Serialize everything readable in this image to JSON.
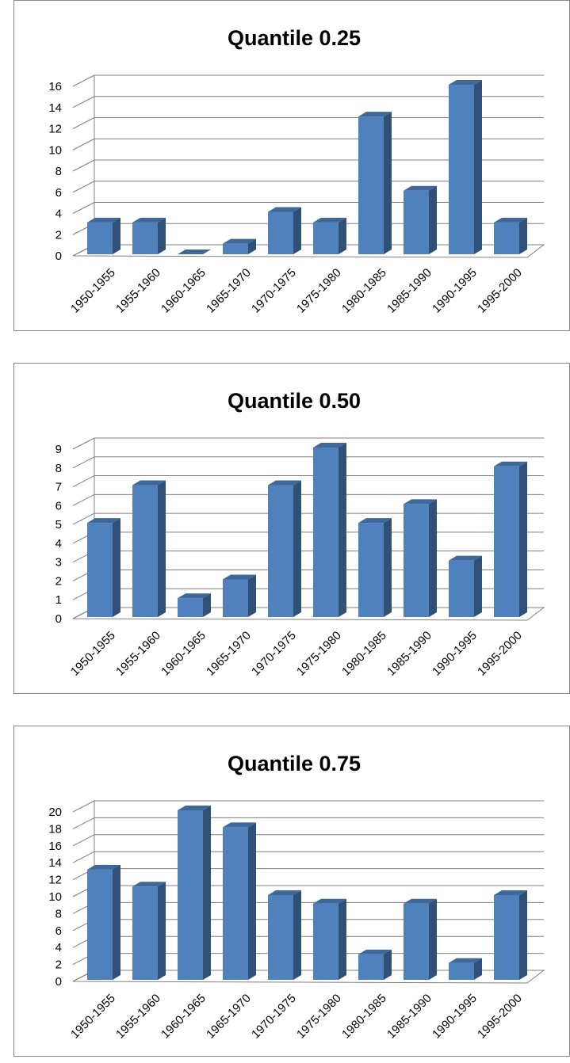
{
  "chart_data": [
    {
      "type": "bar",
      "title": "Quantile 0.25",
      "xlabel": "",
      "ylabel": "",
      "categories": [
        "1950-1955",
        "1955-1960",
        "1960-1965",
        "1965-1970",
        "1970-1975",
        "1975-1980",
        "1980-1985",
        "1985-1990",
        "1990-1995",
        "1995-2000"
      ],
      "values": [
        3,
        3,
        0,
        1,
        4,
        3,
        13,
        6,
        16,
        3
      ],
      "ylim": [
        0,
        16
      ],
      "yticks": [
        0,
        2,
        4,
        6,
        8,
        10,
        12,
        14,
        16
      ],
      "grid": true,
      "legend": "none",
      "bar_color": "#4f81bd"
    },
    {
      "type": "bar",
      "title": "Quantile 0.50",
      "xlabel": "",
      "ylabel": "",
      "categories": [
        "1950-1955",
        "1955-1960",
        "1960-1965",
        "1965-1970",
        "1970-1975",
        "1975-1980",
        "1980-1985",
        "1985-1990",
        "1990-1995",
        "1995-2000"
      ],
      "values": [
        5,
        7,
        1,
        2,
        7,
        9,
        5,
        6,
        3,
        8
      ],
      "ylim": [
        0,
        9
      ],
      "yticks": [
        0,
        1,
        2,
        3,
        4,
        5,
        6,
        7,
        8,
        9
      ],
      "grid": true,
      "legend": "none",
      "bar_color": "#4f81bd"
    },
    {
      "type": "bar",
      "title": "Quantile 0.75",
      "xlabel": "",
      "ylabel": "",
      "categories": [
        "1950-1955",
        "1955-1960",
        "1960-1965",
        "1965-1970",
        "1970-1975",
        "1975-1980",
        "1980-1985",
        "1985-1990",
        "1990-1995",
        "1995-2000"
      ],
      "values": [
        13,
        11,
        20,
        18,
        10,
        9,
        3,
        9,
        2,
        10
      ],
      "ylim": [
        0,
        20
      ],
      "yticks": [
        0,
        2,
        4,
        6,
        8,
        10,
        12,
        14,
        16,
        18,
        20
      ],
      "grid": true,
      "legend": "none",
      "bar_color": "#4f81bd"
    }
  ]
}
